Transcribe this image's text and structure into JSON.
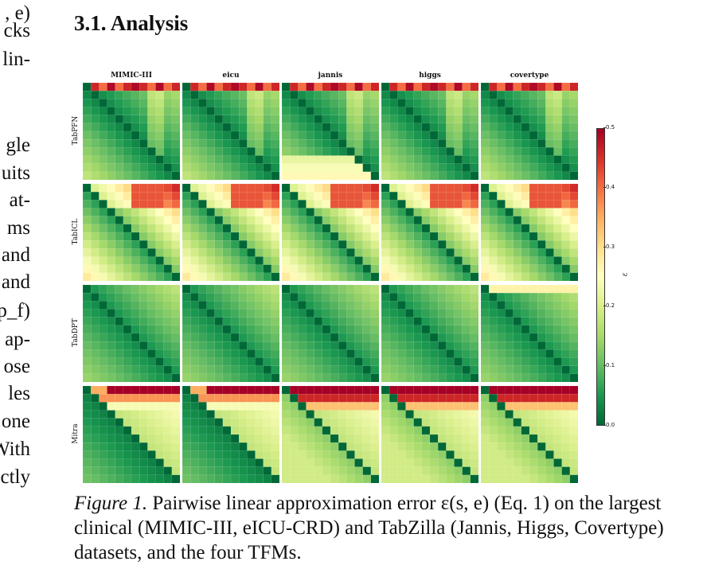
{
  "left_column_fragments": [
    ", e)",
    "cks",
    "lin-",
    "",
    "gle",
    "uits",
    "at-",
    "ms",
    "and",
    "and",
    "p_f)",
    "ap-",
    "ose",
    "les",
    "one",
    "With",
    "ctly"
  ],
  "section": {
    "heading": "3.1. Analysis"
  },
  "figure": {
    "column_titles": [
      "MIMIC-III",
      "eicu",
      "jannis",
      "higgs",
      "covertype"
    ],
    "row_labels": [
      "TabPFN",
      "TabICL",
      "TabDPT",
      "Mitra"
    ],
    "colorbar": {
      "label": "ε",
      "ticks": [
        "0.5",
        "0.4",
        "0.3",
        "0.2",
        "0.1",
        "0.0"
      ],
      "min": 0.0,
      "max": 0.5,
      "colormap": [
        "#006837",
        "#1a9850",
        "#66bd63",
        "#a6d96a",
        "#d9ef8b",
        "#ffffbf",
        "#fee08b",
        "#fdae61",
        "#f46d43",
        "#d73027",
        "#a50026"
      ]
    },
    "caption_label": "Figure 1.",
    "caption_text": "Pairwise linear approximation error ε(s, e) (Eq. 1) on the largest clinical (MIMIC-III, eICU-CRD) and TabZilla (Jannis, Higgs, Covertype) datasets, and the four TFMs."
  }
}
